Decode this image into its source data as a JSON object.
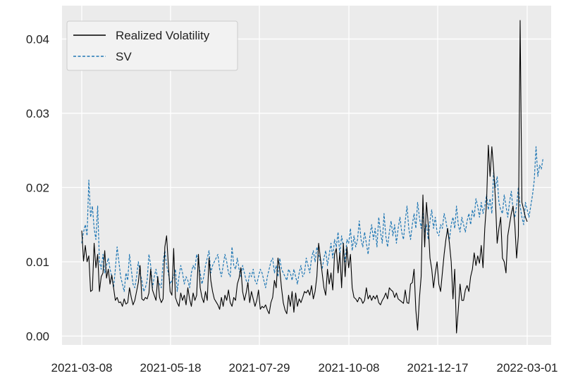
{
  "chart_data": {
    "type": "line",
    "title": "",
    "xlabel": "",
    "ylabel": "",
    "x_tick_labels": [
      "2021-03-08",
      "2021-05-18",
      "2021-07-29",
      "2021-10-08",
      "2021-12-17",
      "2022-03-01"
    ],
    "y_ticks": [
      0.0,
      0.01,
      0.02,
      0.03,
      0.04
    ],
    "y_tick_labels": [
      "0.00",
      "0.01",
      "0.02",
      "0.03",
      "0.04"
    ],
    "ylim": [
      -0.0012,
      0.0445
    ],
    "xlim": [
      -3,
      287
    ],
    "grid": true,
    "legend_position": "top-left",
    "series": [
      {
        "name": "Realized Volatility",
        "color": "#000000",
        "style": "solid",
        "values": [
          0.0142,
          0.0101,
          0.0122,
          0.01,
          0.0108,
          0.006,
          0.0062,
          0.0125,
          0.0092,
          0.011,
          0.006,
          0.008,
          0.0085,
          0.0115,
          0.0078,
          0.009,
          0.007,
          0.0082,
          0.0065,
          0.0048,
          0.0052,
          0.0045,
          0.0046,
          0.004,
          0.005,
          0.0043,
          0.0045,
          0.0065,
          0.0052,
          0.0042,
          0.0048,
          0.006,
          0.0072,
          0.0095,
          0.005,
          0.0048,
          0.0052,
          0.005,
          0.0058,
          0.009,
          0.0062,
          0.0055,
          0.0048,
          0.008,
          0.0052,
          0.0045,
          0.005,
          0.012,
          0.0135,
          0.0095,
          0.006,
          0.0055,
          0.0118,
          0.0052,
          0.0045,
          0.004,
          0.0058,
          0.0048,
          0.0055,
          0.0042,
          0.0065,
          0.005,
          0.004,
          0.0058,
          0.0048,
          0.0055,
          0.011,
          0.0065,
          0.0052,
          0.0045,
          0.006,
          0.0048,
          0.0105,
          0.0075,
          0.006,
          0.005,
          0.0046,
          0.0042,
          0.0036,
          0.0052,
          0.004,
          0.0055,
          0.0048,
          0.0062,
          0.0045,
          0.004,
          0.0052,
          0.0048,
          0.007,
          0.0078,
          0.0092,
          0.006,
          0.0048,
          0.0058,
          0.0072,
          0.0045,
          0.006,
          0.005,
          0.004,
          0.0048,
          0.0062,
          0.0036,
          0.004,
          0.0038,
          0.0042,
          0.0035,
          0.003,
          0.0045,
          0.0052,
          0.0075,
          0.0065,
          0.0105,
          0.009,
          0.0065,
          0.0045,
          0.0035,
          0.003,
          0.0055,
          0.004,
          0.006,
          0.0032,
          0.0058,
          0.004,
          0.005,
          0.0045,
          0.0052,
          0.006,
          0.0058,
          0.0062,
          0.0055,
          0.0068,
          0.005,
          0.006,
          0.008,
          0.0125,
          0.0105,
          0.0085,
          0.0065,
          0.0055,
          0.009,
          0.007,
          0.0085,
          0.0062,
          0.011,
          0.0118,
          0.0085,
          0.0112,
          0.0065,
          0.0125,
          0.008,
          0.012,
          0.0092,
          0.011,
          0.0065,
          0.0052,
          0.005,
          0.0046,
          0.0052,
          0.005,
          0.0044,
          0.0048,
          0.0065,
          0.005,
          0.0055,
          0.0048,
          0.0054,
          0.005,
          0.0055,
          0.0045,
          0.0042,
          0.0048,
          0.0052,
          0.0058,
          0.005,
          0.0065,
          0.0062,
          0.006,
          0.0052,
          0.0058,
          0.005,
          0.0048,
          0.0046,
          0.0044,
          0.0062,
          0.0045,
          0.0044,
          0.007,
          0.0072,
          0.009,
          0.0035,
          0.0008,
          0.005,
          0.008,
          0.019,
          0.012,
          0.018,
          0.015,
          0.0105,
          0.009,
          0.0065,
          0.0085,
          0.01,
          0.007,
          0.006,
          0.0085,
          0.011,
          0.013,
          0.0145,
          0.0125,
          0.01,
          0.005,
          0.009,
          0.0004,
          0.0035,
          0.007,
          0.0048,
          0.0048,
          0.0062,
          0.0068,
          0.006,
          0.008,
          0.009,
          0.0112,
          0.0095,
          0.0108,
          0.0098,
          0.0122,
          0.0092,
          0.0145,
          0.018,
          0.0257,
          0.0215,
          0.0255,
          0.0225,
          0.0185,
          0.0125,
          0.0145,
          0.016,
          0.0105,
          0.01,
          0.0085,
          0.0135,
          0.015,
          0.0165,
          0.0175,
          0.015,
          0.0105,
          0.0135,
          0.0425,
          0.018,
          0.017,
          0.016,
          0.0154
        ]
      },
      {
        "name": "SV",
        "color": "#1f77b4",
        "style": "dashed",
        "values": [
          0.0125,
          0.014,
          0.015,
          0.0135,
          0.021,
          0.016,
          0.0175,
          0.0145,
          0.013,
          0.0175,
          0.01,
          0.009,
          0.011,
          0.0085,
          0.0095,
          0.0105,
          0.009,
          0.008,
          0.0065,
          0.009,
          0.012,
          0.01,
          0.008,
          0.007,
          0.006,
          0.0085,
          0.0075,
          0.011,
          0.009,
          0.007,
          0.0065,
          0.008,
          0.01,
          0.0085,
          0.0075,
          0.006,
          0.0065,
          0.0075,
          0.011,
          0.0095,
          0.0065,
          0.008,
          0.009,
          0.0075,
          0.007,
          0.0065,
          0.01,
          0.0115,
          0.0095,
          0.0085,
          0.007,
          0.0075,
          0.008,
          0.009,
          0.006,
          0.008,
          0.0095,
          0.0085,
          0.007,
          0.008,
          0.0075,
          0.0065,
          0.0085,
          0.0095,
          0.009,
          0.011,
          0.01,
          0.0085,
          0.007,
          0.008,
          0.0095,
          0.0105,
          0.0115,
          0.0085,
          0.0095,
          0.01,
          0.0105,
          0.011,
          0.009,
          0.008,
          0.0095,
          0.011,
          0.01,
          0.0085,
          0.008,
          0.012,
          0.0095,
          0.009,
          0.0105,
          0.009,
          0.008,
          0.0095,
          0.0085,
          0.0075,
          0.007,
          0.0085,
          0.008,
          0.009,
          0.0075,
          0.007,
          0.008,
          0.009,
          0.0085,
          0.0075,
          0.0065,
          0.008,
          0.009,
          0.01,
          0.0105,
          0.0085,
          0.0095,
          0.008,
          0.0105,
          0.009,
          0.0085,
          0.008,
          0.0075,
          0.009,
          0.0085,
          0.0075,
          0.009,
          0.008,
          0.007,
          0.0085,
          0.0095,
          0.008,
          0.0085,
          0.0105,
          0.0095,
          0.0085,
          0.0105,
          0.0115,
          0.01,
          0.012,
          0.011,
          0.01,
          0.009,
          0.0105,
          0.0115,
          0.0095,
          0.011,
          0.0125,
          0.0105,
          0.013,
          0.012,
          0.014,
          0.011,
          0.0135,
          0.012,
          0.01,
          0.013,
          0.0125,
          0.0145,
          0.0115,
          0.0135,
          0.012,
          0.013,
          0.0155,
          0.013,
          0.012,
          0.014,
          0.0125,
          0.011,
          0.0135,
          0.015,
          0.013,
          0.0145,
          0.012,
          0.016,
          0.014,
          0.0125,
          0.0165,
          0.0135,
          0.012,
          0.014,
          0.0155,
          0.0135,
          0.015,
          0.0125,
          0.0145,
          0.016,
          0.014,
          0.013,
          0.0155,
          0.0175,
          0.0145,
          0.013,
          0.015,
          0.0165,
          0.0145,
          0.018,
          0.016,
          0.0145,
          0.0165,
          0.014,
          0.015,
          0.013,
          0.0155,
          0.017,
          0.0145,
          0.016,
          0.014,
          0.0135,
          0.015,
          0.0145,
          0.0165,
          0.0155,
          0.014,
          0.013,
          0.015,
          0.016,
          0.0145,
          0.0175,
          0.015,
          0.014,
          0.016,
          0.015,
          0.014,
          0.0155,
          0.0165,
          0.015,
          0.017,
          0.016,
          0.0185,
          0.0175,
          0.016,
          0.018,
          0.0165,
          0.0175,
          0.019,
          0.017,
          0.0185,
          0.0165,
          0.022,
          0.02,
          0.0215,
          0.018,
          0.017,
          0.0165,
          0.019,
          0.0175,
          0.016,
          0.018,
          0.0195,
          0.017,
          0.016,
          0.0175,
          0.02,
          0.0175,
          0.016,
          0.015,
          0.018,
          0.017,
          0.016,
          0.0175,
          0.019,
          0.021,
          0.0255,
          0.0215,
          0.023,
          0.0225,
          0.024
        ]
      }
    ]
  }
}
